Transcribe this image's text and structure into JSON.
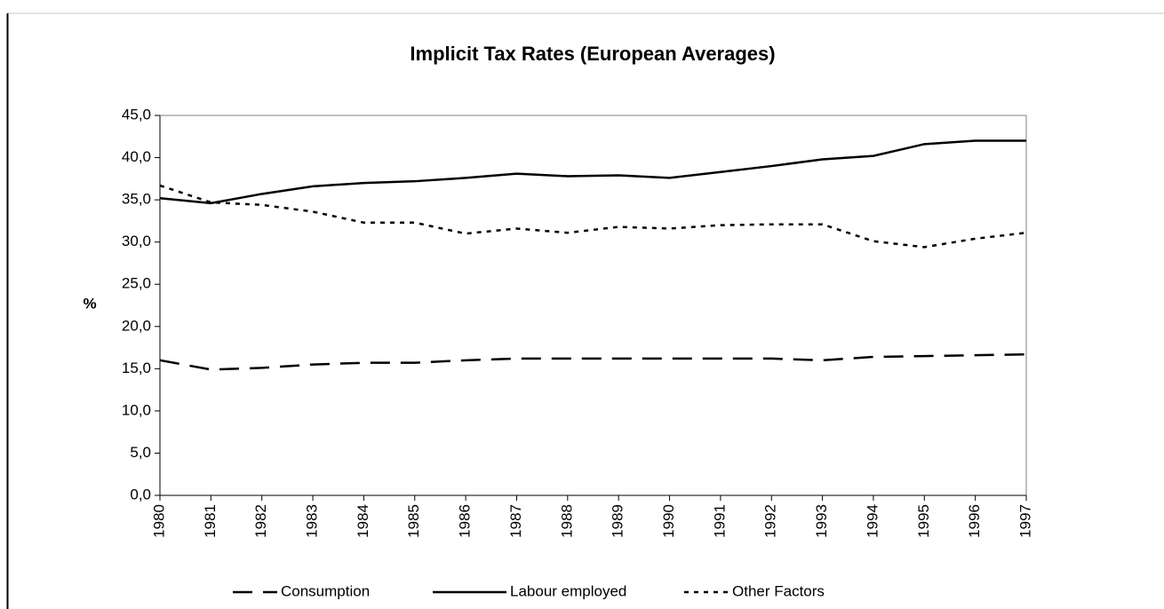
{
  "chart_data": {
    "type": "line",
    "title": "Implicit Tax Rates (European Averages)",
    "ylabel": "%",
    "categories": [
      "1980",
      "1981",
      "1982",
      "1983",
      "1984",
      "1985",
      "1986",
      "1987",
      "1988",
      "1989",
      "1990",
      "1991",
      "1992",
      "1993",
      "1994",
      "1995",
      "1996",
      "1997"
    ],
    "ylim": [
      0,
      45
    ],
    "yticks": [
      {
        "value": 0,
        "label": "0,0"
      },
      {
        "value": 5,
        "label": "5,0"
      },
      {
        "value": 10,
        "label": "10,0"
      },
      {
        "value": 15,
        "label": "15,0"
      },
      {
        "value": 20,
        "label": "20,0"
      },
      {
        "value": 25,
        "label": "25,0"
      },
      {
        "value": 30,
        "label": "30,0"
      },
      {
        "value": 35,
        "label": "35,0"
      },
      {
        "value": 40,
        "label": "40,0"
      },
      {
        "value": 45,
        "label": "45,0"
      }
    ],
    "grid": false,
    "legend": "bottom",
    "series": [
      {
        "name": "Consumption",
        "color": "#000000",
        "dash": "dashed",
        "values": [
          16.0,
          14.9,
          15.1,
          15.5,
          15.7,
          15.7,
          16.0,
          16.2,
          16.2,
          16.2,
          16.2,
          16.2,
          16.2,
          16.0,
          16.4,
          16.5,
          16.6,
          16.7
        ]
      },
      {
        "name": "Labour employed",
        "color": "#000000",
        "dash": "solid",
        "values": [
          35.2,
          34.6,
          35.7,
          36.6,
          37.0,
          37.2,
          37.6,
          38.1,
          37.8,
          37.9,
          37.6,
          38.3,
          39.0,
          39.8,
          40.2,
          41.6,
          42.0,
          42.0
        ]
      },
      {
        "name": "Other Factors",
        "color": "#000000",
        "dash": "dotted",
        "values": [
          36.7,
          34.7,
          34.4,
          33.6,
          32.3,
          32.3,
          31.0,
          31.6,
          31.1,
          31.8,
          31.6,
          32.0,
          32.1,
          32.1,
          30.1,
          29.4,
          30.4,
          31.1
        ]
      }
    ]
  }
}
